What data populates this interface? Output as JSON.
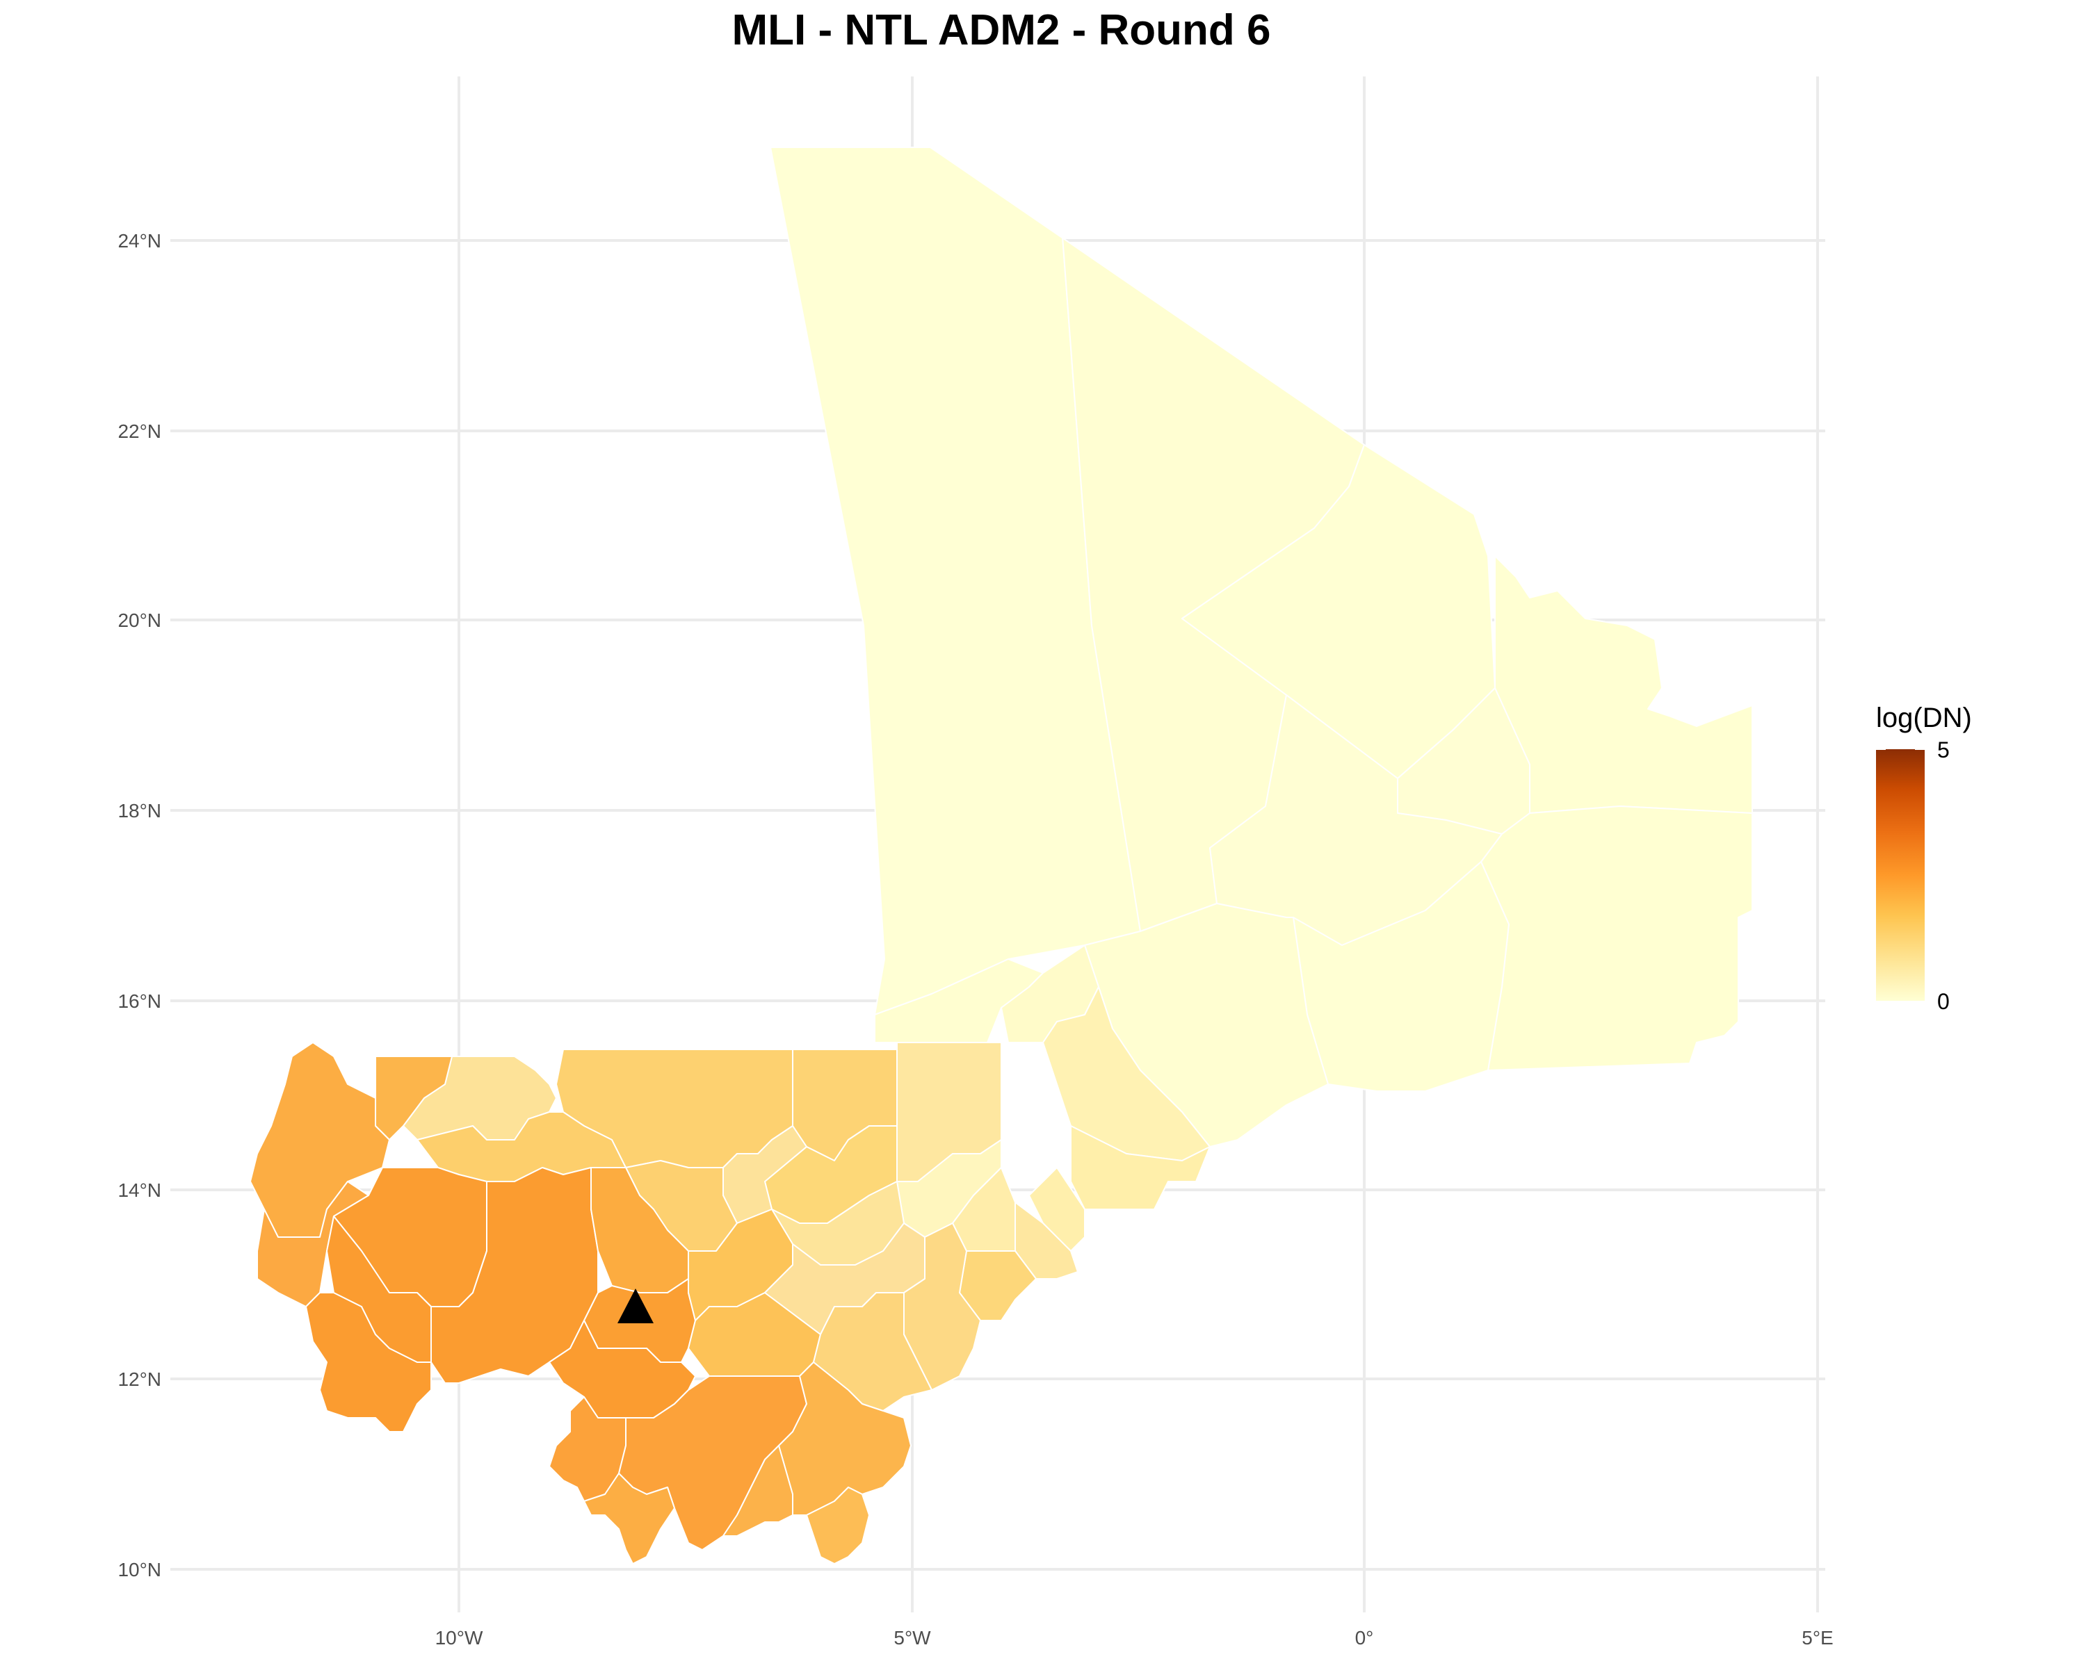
{
  "title": "MLI - NTL ADM2 - Round 6",
  "map": {
    "x_ticks": [
      "10°W",
      "5°W",
      "0°",
      "5°E"
    ],
    "y_ticks": [
      "24°N",
      "22°N",
      "20°N",
      "18°N",
      "16°N",
      "14°N",
      "12°N",
      "10°N"
    ],
    "grid": true,
    "marker": {
      "shape": "triangle",
      "color": "#000000"
    }
  },
  "legend": {
    "title": "log(DN)",
    "max_label": "5",
    "min_label": "0",
    "colors": [
      "#ffffd4",
      "#fee391",
      "#fec44f",
      "#fe9929",
      "#ec7014",
      "#cc4c02",
      "#8c2d04"
    ]
  }
}
